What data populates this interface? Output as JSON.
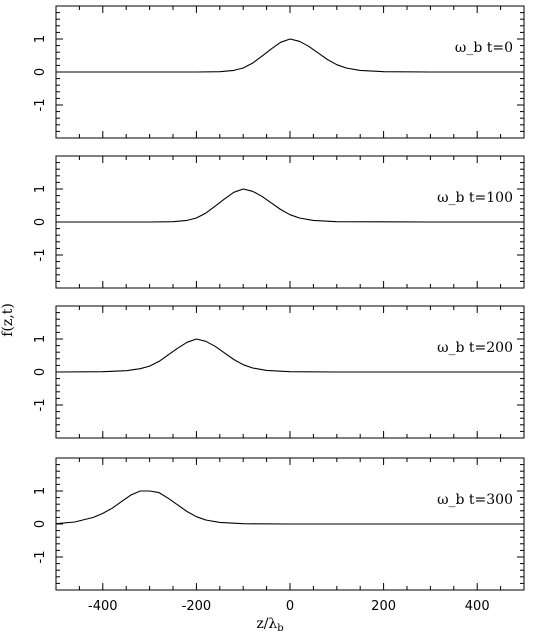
{
  "chart_data": [
    {
      "type": "line",
      "annotation": "ω_b t=0",
      "series": [
        {
          "x": [
            -500,
            -300,
            -200,
            -150,
            -120,
            -100,
            -80,
            -60,
            -40,
            -20,
            0,
            20,
            40,
            60,
            80,
            100,
            120,
            150,
            200,
            300,
            500
          ],
          "values": [
            0,
            0,
            0,
            0.01,
            0.05,
            0.12,
            0.27,
            0.48,
            0.7,
            0.9,
            1.0,
            0.93,
            0.78,
            0.58,
            0.38,
            0.22,
            0.12,
            0.05,
            0.01,
            0,
            0
          ]
        }
      ],
      "xlim": [
        -500,
        500
      ],
      "ylim": [
        -2,
        2
      ],
      "yticks": [
        "-1",
        "0",
        "1"
      ]
    },
    {
      "type": "line",
      "annotation": "ω_b t=100",
      "series": [
        {
          "x": [
            -500,
            -400,
            -300,
            -250,
            -220,
            -200,
            -180,
            -160,
            -140,
            -120,
            -100,
            -80,
            -60,
            -40,
            -20,
            0,
            20,
            50,
            100,
            300,
            500
          ],
          "values": [
            0,
            0,
            0,
            0.01,
            0.05,
            0.12,
            0.27,
            0.48,
            0.7,
            0.9,
            1.0,
            0.93,
            0.78,
            0.58,
            0.38,
            0.22,
            0.12,
            0.05,
            0.01,
            0,
            0
          ]
        }
      ],
      "xlim": [
        -500,
        500
      ],
      "ylim": [
        -2,
        2
      ],
      "yticks": [
        "-1",
        "0",
        "1"
      ]
    },
    {
      "type": "line",
      "annotation": "ω_b t=200",
      "series": [
        {
          "x": [
            -500,
            -400,
            -350,
            -320,
            -300,
            -280,
            -260,
            -240,
            -220,
            -200,
            -180,
            -160,
            -140,
            -120,
            -100,
            -80,
            -50,
            0,
            100,
            300,
            500
          ],
          "values": [
            0,
            0.01,
            0.04,
            0.1,
            0.18,
            0.32,
            0.52,
            0.72,
            0.9,
            1.0,
            0.93,
            0.78,
            0.58,
            0.38,
            0.22,
            0.12,
            0.05,
            0.01,
            0,
            0,
            0
          ]
        }
      ],
      "xlim": [
        -500,
        500
      ],
      "ylim": [
        -2,
        2
      ],
      "yticks": [
        "-1",
        "0",
        "1"
      ]
    },
    {
      "type": "line",
      "annotation": "ω_b t=300",
      "series": [
        {
          "x": [
            -500,
            -460,
            -420,
            -400,
            -380,
            -360,
            -340,
            -320,
            -300,
            -280,
            -260,
            -240,
            -220,
            -200,
            -180,
            -150,
            -100,
            0,
            100,
            300,
            500
          ],
          "values": [
            0.01,
            0.06,
            0.2,
            0.32,
            0.48,
            0.68,
            0.88,
            1.0,
            1.0,
            0.95,
            0.78,
            0.58,
            0.38,
            0.22,
            0.12,
            0.05,
            0.01,
            0,
            0,
            0,
            0
          ]
        }
      ],
      "xlim": [
        -500,
        500
      ],
      "ylim": [
        -2,
        2
      ],
      "yticks": [
        "-1",
        "0",
        "1"
      ]
    }
  ],
  "axes": {
    "xticks": [
      "-400",
      "-200",
      "0",
      "200",
      "400"
    ],
    "xlabel_main": "z/λ",
    "xlabel_sub": "b",
    "ylabel": "f(z,t)"
  }
}
